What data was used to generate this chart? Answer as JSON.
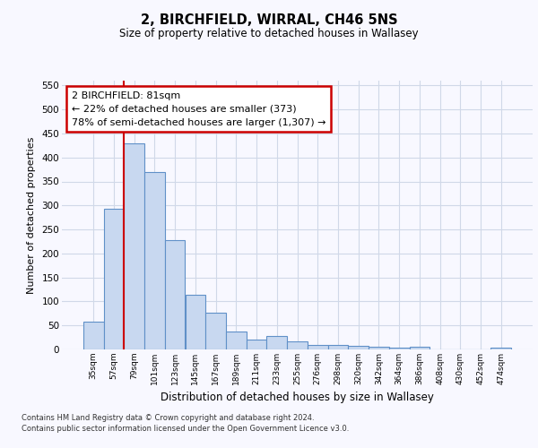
{
  "title": "2, BIRCHFIELD, WIRRAL, CH46 5NS",
  "subtitle": "Size of property relative to detached houses in Wallasey",
  "xlabel": "Distribution of detached houses by size in Wallasey",
  "ylabel": "Number of detached properties",
  "categories": [
    "35sqm",
    "57sqm",
    "79sqm",
    "101sqm",
    "123sqm",
    "145sqm",
    "167sqm",
    "189sqm",
    "211sqm",
    "233sqm",
    "255sqm",
    "276sqm",
    "298sqm",
    "320sqm",
    "342sqm",
    "364sqm",
    "386sqm",
    "408sqm",
    "430sqm",
    "452sqm",
    "474sqm"
  ],
  "values": [
    57,
    293,
    430,
    370,
    227,
    113,
    76,
    37,
    20,
    28,
    16,
    10,
    10,
    7,
    5,
    4,
    5,
    0,
    0,
    0,
    4
  ],
  "bar_color": "#c8d8f0",
  "bar_edge_color": "#6090c8",
  "red_line_index": 2,
  "red_line_color": "#cc0000",
  "annotation_text": "2 BIRCHFIELD: 81sqm\n← 22% of detached houses are smaller (373)\n78% of semi-detached houses are larger (1,307) →",
  "annotation_box_color": "#ffffff",
  "annotation_box_edge": "#cc0000",
  "ylim": [
    0,
    560
  ],
  "yticks": [
    0,
    50,
    100,
    150,
    200,
    250,
    300,
    350,
    400,
    450,
    500,
    550
  ],
  "bg_color": "#f8f8ff",
  "plot_bg_color": "#f8f8ff",
  "grid_color": "#d0d8e8",
  "footer": "Contains HM Land Registry data © Crown copyright and database right 2024.\nContains public sector information licensed under the Open Government Licence v3.0."
}
